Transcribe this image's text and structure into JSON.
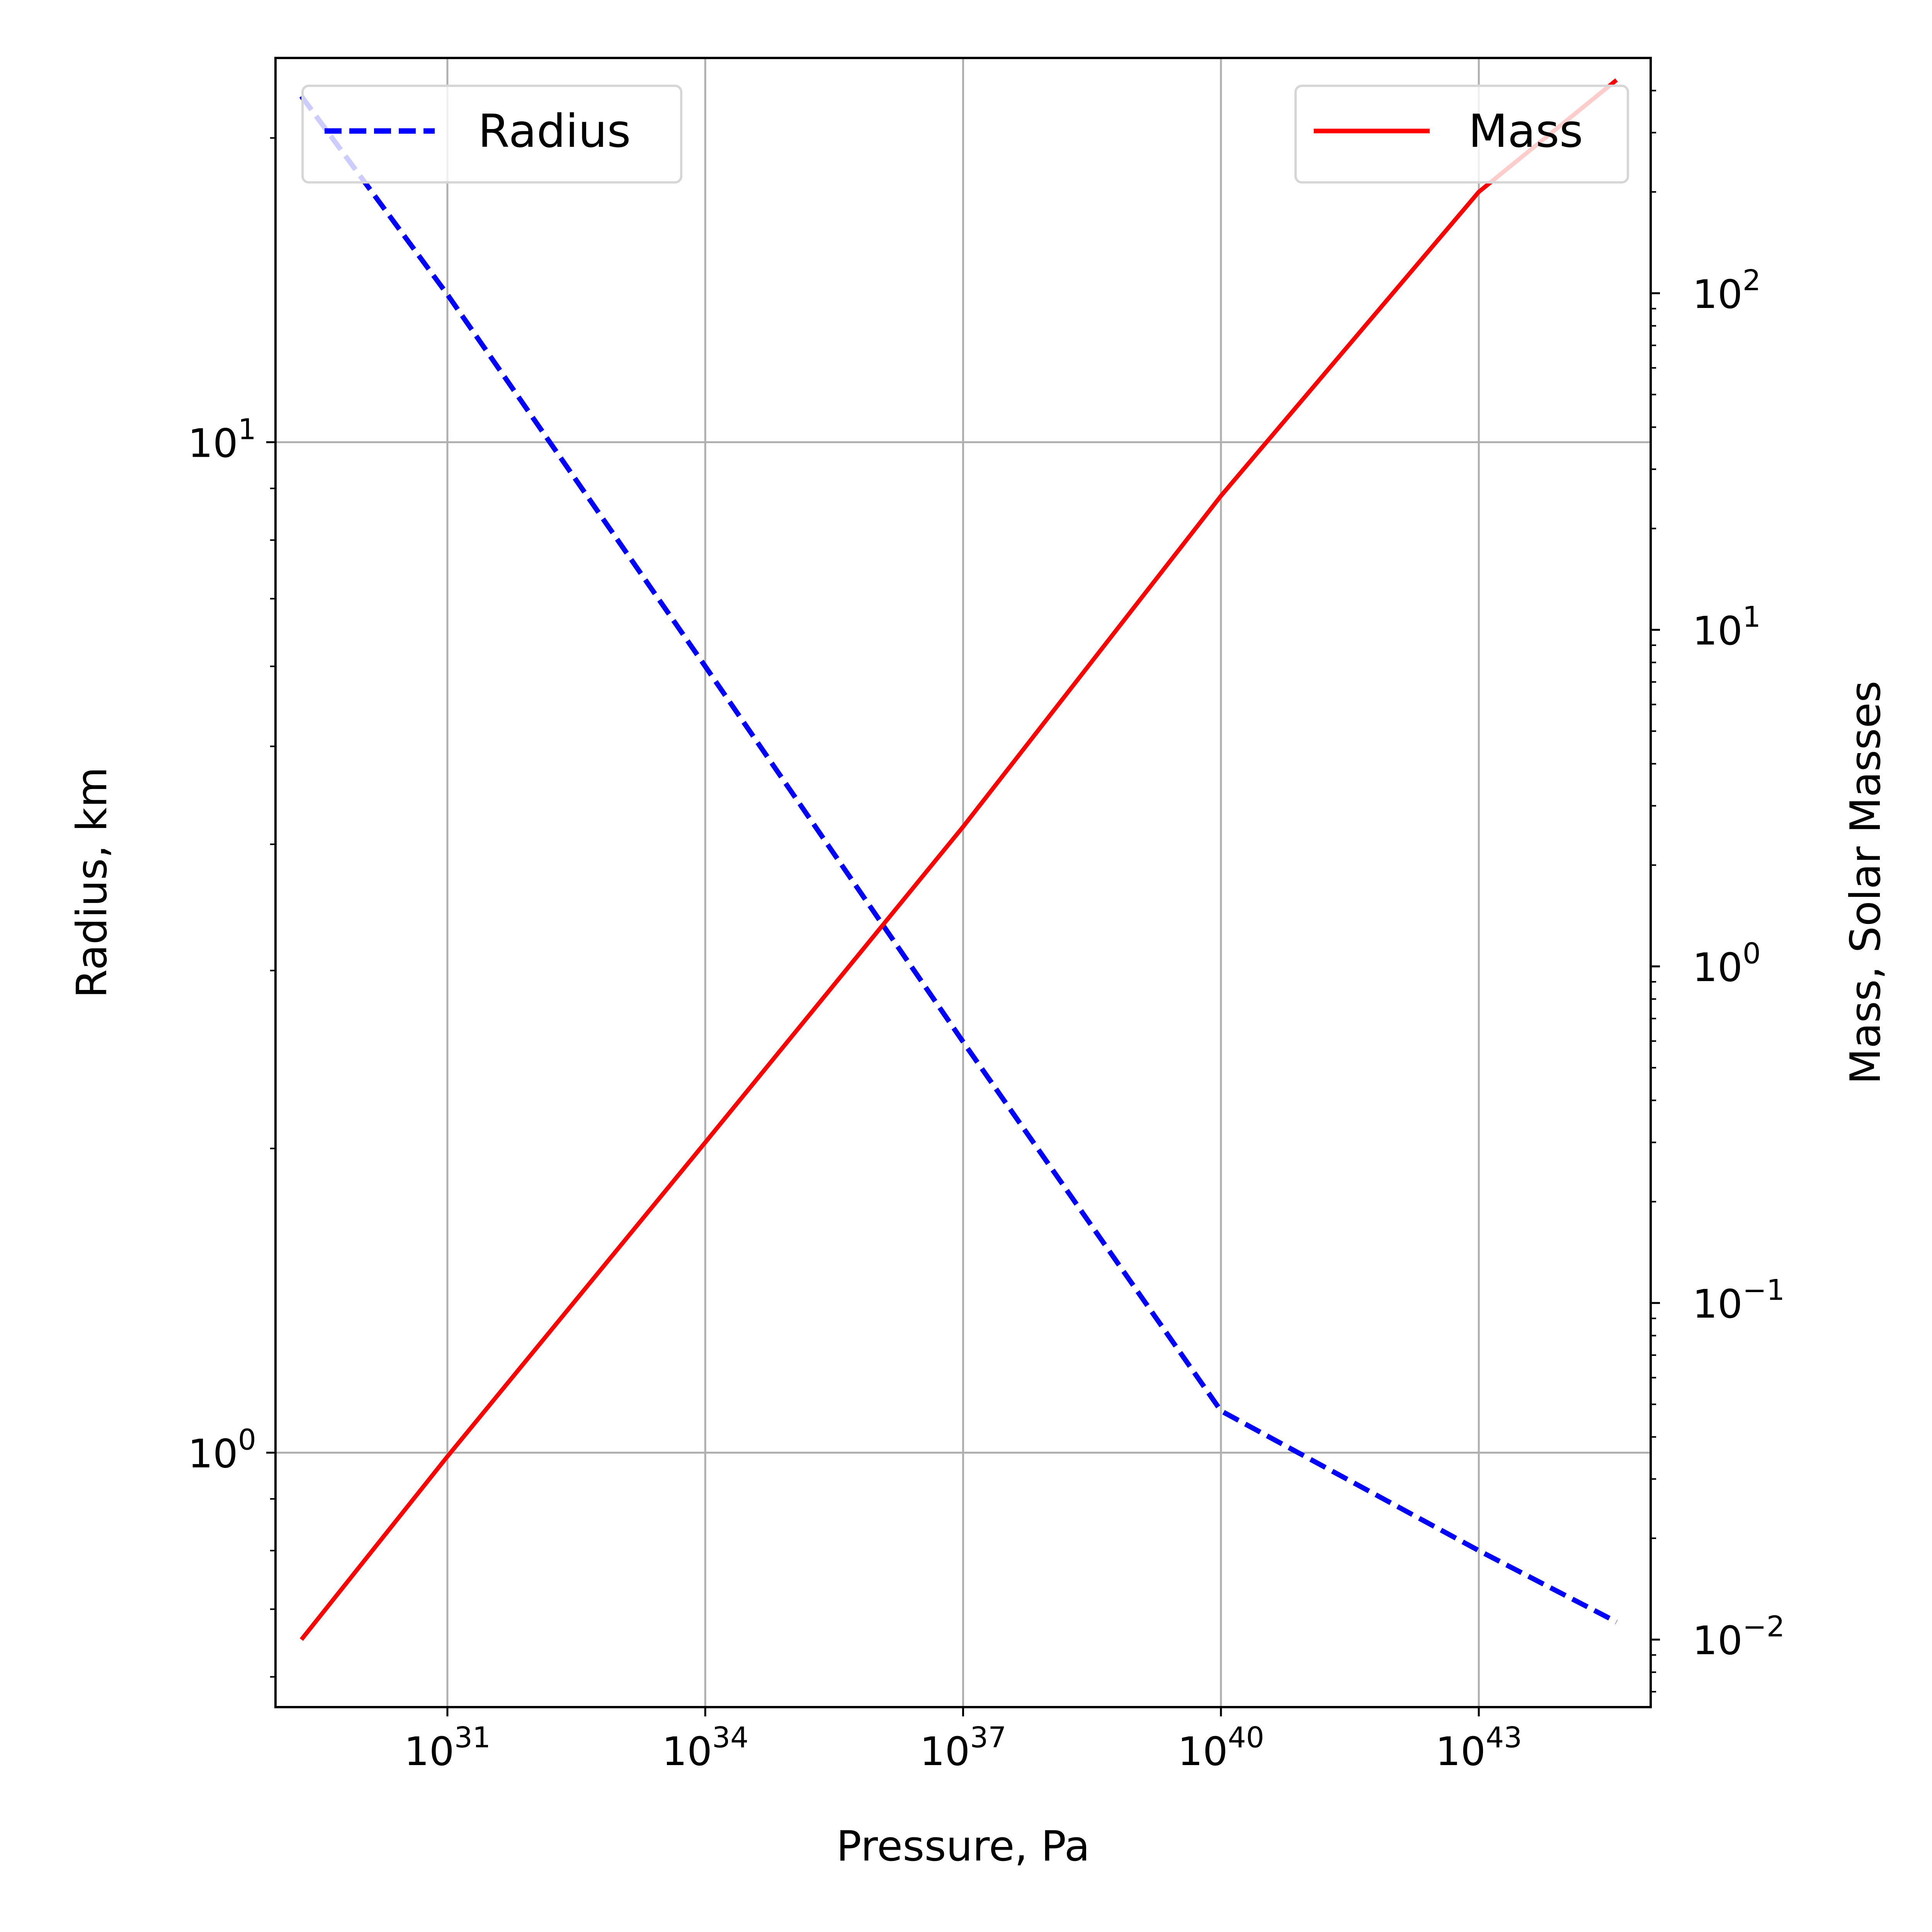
{
  "chart_data": {
    "type": "line",
    "xlabel": "Pressure, Pa",
    "ylabel_left": "Radius, km",
    "ylabel_right": "Mass, Solar Masses",
    "x_scale": "log",
    "y_left_scale": "log",
    "y_right_scale": "log",
    "xlim": [
      1e+29,
      1e+45
    ],
    "ylim_left": [
      0.56,
      24
    ],
    "ylim_right": [
      0.0063,
      500
    ],
    "x_ticks": [
      1e+31,
      1e+34,
      1e+37,
      1e+40,
      1e+43
    ],
    "x_tick_labels": [
      {
        "base": "10",
        "exp": "31"
      },
      {
        "base": "10",
        "exp": "34"
      },
      {
        "base": "10",
        "exp": "37"
      },
      {
        "base": "10",
        "exp": "40"
      },
      {
        "base": "10",
        "exp": "43"
      }
    ],
    "y_left_ticks": [
      1,
      10
    ],
    "y_left_tick_labels": [
      {
        "base": "10",
        "exp": "0"
      },
      {
        "base": "10",
        "exp": "1"
      }
    ],
    "y_right_ticks": [
      0.01,
      0.1,
      1,
      10,
      100
    ],
    "y_right_tick_labels": [
      {
        "base": "10",
        "exp": "−2"
      },
      {
        "base": "10",
        "exp": "−1"
      },
      {
        "base": "10",
        "exp": "0"
      },
      {
        "base": "10",
        "exp": "1"
      },
      {
        "base": "10",
        "exp": "2"
      }
    ],
    "grid": true,
    "series": [
      {
        "name": "Radius",
        "axis": "left",
        "color": "#0000ff",
        "style": "dashed",
        "x": [
          2e+29,
          1e+31,
          1e+34,
          1e+37,
          1e+40,
          1e+43,
          4e+44
        ],
        "y": [
          22,
          14,
          6.0,
          2.55,
          1.1,
          0.8,
          0.68
        ]
      },
      {
        "name": "Mass",
        "axis": "right",
        "color": "#ff0000",
        "style": "solid",
        "x": [
          2e+29,
          1e+31,
          1e+34,
          1e+37,
          1e+40,
          1e+43,
          4e+44
        ],
        "y": [
          0.01,
          0.035,
          0.3,
          2.6,
          25,
          200,
          430
        ]
      }
    ],
    "legend_left": {
      "label": "Radius",
      "placement": "upper-left"
    },
    "legend_right": {
      "label": "Mass",
      "placement": "upper-right"
    }
  }
}
